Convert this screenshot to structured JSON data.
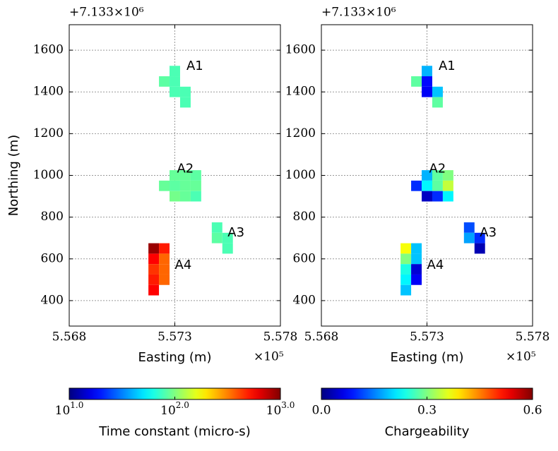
{
  "chart_data": [
    {
      "type": "heatmap",
      "xlabel": "Easting (m)",
      "ylabel": "Northing (m)",
      "x_offset": "×10⁵",
      "y_offset": "+7.133×10⁶",
      "xlim": [
        5.568,
        5.578
      ],
      "xticks": [
        5.568,
        5.573,
        5.578
      ],
      "ylim": [
        278,
        1722
      ],
      "yticks": [
        400,
        600,
        800,
        1000,
        1200,
        1400,
        1600
      ],
      "grid": true,
      "cells": [
        {
          "x": 5.573,
          "y": 1500,
          "value": 79
        },
        {
          "x": 5.5725,
          "y": 1450,
          "value": 85
        },
        {
          "x": 5.573,
          "y": 1450,
          "value": 79
        },
        {
          "x": 5.573,
          "y": 1400,
          "value": 79
        },
        {
          "x": 5.5735,
          "y": 1400,
          "value": 79
        },
        {
          "x": 5.5735,
          "y": 1350,
          "value": 79
        },
        {
          "x": 5.573,
          "y": 1000,
          "value": 89
        },
        {
          "x": 5.5735,
          "y": 1000,
          "value": 89
        },
        {
          "x": 5.574,
          "y": 1000,
          "value": 85
        },
        {
          "x": 5.5725,
          "y": 950,
          "value": 89
        },
        {
          "x": 5.573,
          "y": 950,
          "value": 85
        },
        {
          "x": 5.5735,
          "y": 950,
          "value": 89
        },
        {
          "x": 5.574,
          "y": 950,
          "value": 89
        },
        {
          "x": 5.573,
          "y": 900,
          "value": 95
        },
        {
          "x": 5.5735,
          "y": 900,
          "value": 89
        },
        {
          "x": 5.574,
          "y": 900,
          "value": 79
        },
        {
          "x": 5.575,
          "y": 750,
          "value": 79
        },
        {
          "x": 5.575,
          "y": 700,
          "value": 85
        },
        {
          "x": 5.5755,
          "y": 700,
          "value": 79
        },
        {
          "x": 5.5755,
          "y": 650,
          "value": 79
        },
        {
          "x": 5.572,
          "y": 650,
          "value": 891
        },
        {
          "x": 5.5725,
          "y": 650,
          "value": 501
        },
        {
          "x": 5.572,
          "y": 600,
          "value": 562
        },
        {
          "x": 5.5725,
          "y": 600,
          "value": 355
        },
        {
          "x": 5.572,
          "y": 550,
          "value": 447
        },
        {
          "x": 5.5725,
          "y": 550,
          "value": 355
        },
        {
          "x": 5.572,
          "y": 500,
          "value": 501
        },
        {
          "x": 5.5725,
          "y": 500,
          "value": 355
        },
        {
          "x": 5.572,
          "y": 450,
          "value": 562
        }
      ],
      "annotations": [
        {
          "text": "A1",
          "x": 5.57355,
          "y": 1522
        },
        {
          "text": "A2",
          "x": 5.5731,
          "y": 1030
        },
        {
          "text": "A3",
          "x": 5.5755,
          "y": 724
        },
        {
          "text": "A4",
          "x": 5.573,
          "y": 569
        }
      ],
      "colorbar": {
        "label": "Time constant (micro-s)",
        "scale": "log",
        "colormap": "jet",
        "lim": [
          10,
          1000
        ],
        "ticks": [
          {
            "value": 10,
            "label": "10^1.0"
          },
          {
            "value": 100,
            "label": "10^2.0"
          },
          {
            "value": 1000,
            "label": "10^3.0"
          }
        ]
      }
    },
    {
      "type": "heatmap",
      "xlabel": "Easting (m)",
      "x_offset": "×10⁵",
      "y_offset": "+7.133×10⁶",
      "xlim": [
        5.568,
        5.578
      ],
      "xticks": [
        5.568,
        5.573,
        5.578
      ],
      "ylim": [
        278,
        1722
      ],
      "yticks": [
        400,
        600,
        800,
        1000,
        1200,
        1400,
        1600
      ],
      "grid": true,
      "cells": [
        {
          "x": 5.573,
          "y": 1500,
          "value": 0.18
        },
        {
          "x": 5.5725,
          "y": 1450,
          "value": 0.28
        },
        {
          "x": 5.573,
          "y": 1450,
          "value": 0.08
        },
        {
          "x": 5.573,
          "y": 1400,
          "value": 0.07
        },
        {
          "x": 5.5735,
          "y": 1400,
          "value": 0.19
        },
        {
          "x": 5.5735,
          "y": 1350,
          "value": 0.28
        },
        {
          "x": 5.573,
          "y": 1000,
          "value": 0.18
        },
        {
          "x": 5.5735,
          "y": 1000,
          "value": 0.28
        },
        {
          "x": 5.574,
          "y": 1000,
          "value": 0.3
        },
        {
          "x": 5.5725,
          "y": 950,
          "value": 0.1
        },
        {
          "x": 5.573,
          "y": 950,
          "value": 0.22
        },
        {
          "x": 5.5735,
          "y": 950,
          "value": 0.28
        },
        {
          "x": 5.574,
          "y": 950,
          "value": 0.34
        },
        {
          "x": 5.573,
          "y": 900,
          "value": 0.04
        },
        {
          "x": 5.5735,
          "y": 900,
          "value": 0.1
        },
        {
          "x": 5.574,
          "y": 900,
          "value": 0.22
        },
        {
          "x": 5.575,
          "y": 750,
          "value": 0.12
        },
        {
          "x": 5.575,
          "y": 700,
          "value": 0.17
        },
        {
          "x": 5.5755,
          "y": 700,
          "value": 0.1
        },
        {
          "x": 5.5755,
          "y": 650,
          "value": 0.03
        },
        {
          "x": 5.572,
          "y": 650,
          "value": 0.37
        },
        {
          "x": 5.5725,
          "y": 650,
          "value": 0.19
        },
        {
          "x": 5.572,
          "y": 600,
          "value": 0.3
        },
        {
          "x": 5.5725,
          "y": 600,
          "value": 0.19
        },
        {
          "x": 5.572,
          "y": 550,
          "value": 0.24
        },
        {
          "x": 5.5725,
          "y": 550,
          "value": 0.05
        },
        {
          "x": 5.572,
          "y": 500,
          "value": 0.22
        },
        {
          "x": 5.5725,
          "y": 500,
          "value": 0.07
        },
        {
          "x": 5.572,
          "y": 450,
          "value": 0.19
        }
      ],
      "annotations": [
        {
          "text": "A1",
          "x": 5.57355,
          "y": 1522
        },
        {
          "text": "A2",
          "x": 5.5731,
          "y": 1030
        },
        {
          "text": "A3",
          "x": 5.5755,
          "y": 724
        },
        {
          "text": "A4",
          "x": 5.573,
          "y": 569
        }
      ],
      "colorbar": {
        "label": "Chargeability",
        "scale": "linear",
        "colormap": "jet",
        "lim": [
          0,
          0.6
        ],
        "ticks": [
          {
            "value": 0,
            "label": "0.0"
          },
          0.3,
          {
            "value": 0.6,
            "label": "0.6"
          }
        ]
      }
    }
  ]
}
